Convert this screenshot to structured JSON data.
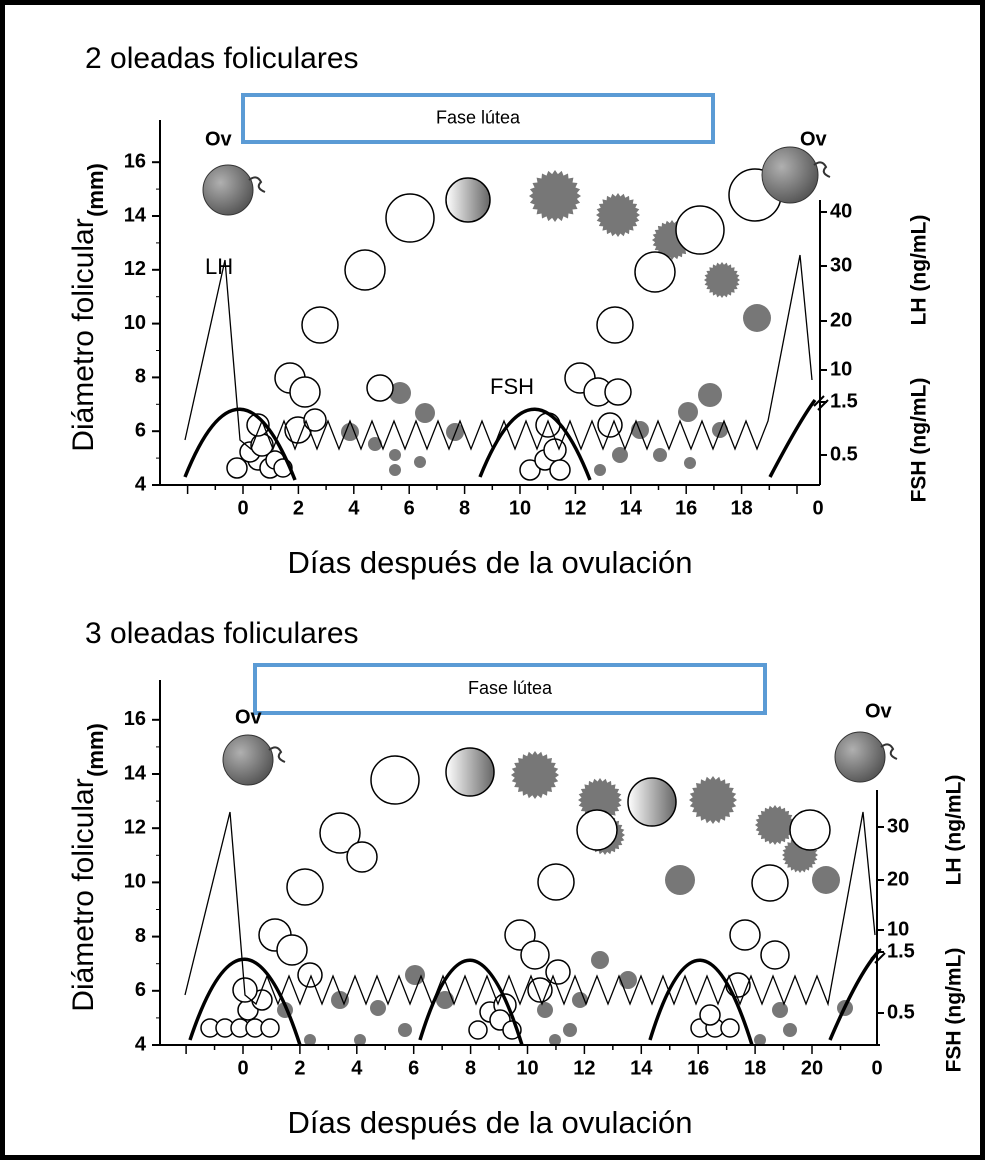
{
  "panels": [
    {
      "title": "2 oleadas foliculares",
      "phase_label": "Fase lútea",
      "y_axis_label": "Diámetro folicular",
      "y_axis_unit": "(mm)",
      "y_ticks": [
        "4",
        "6",
        "8",
        "10",
        "12",
        "14",
        "16"
      ],
      "x_ticks": [
        "0",
        "2",
        "4",
        "6",
        "8",
        "10",
        "12",
        "14",
        "16",
        "18",
        "0"
      ],
      "right_ticks": [
        "40",
        "30",
        "20",
        "10",
        "1.5",
        "0.5"
      ],
      "right_axis_labels": [
        "LH (ng/mL)",
        "FSH (ng/mL)"
      ],
      "x_axis_label": "Días después de la ovulación",
      "ovulation_labels": [
        "Ov",
        "Ov"
      ],
      "hormone_labels": [
        "LH",
        "FSH"
      ]
    },
    {
      "title": "3 oleadas foliculares",
      "phase_label": "Fase lútea",
      "y_axis_label": "Diámetro folicular",
      "y_axis_unit": "(mm)",
      "y_ticks": [
        "4",
        "6",
        "8",
        "10",
        "12",
        "14",
        "16"
      ],
      "x_ticks": [
        "0",
        "2",
        "4",
        "6",
        "8",
        "10",
        "12",
        "14",
        "16",
        "18",
        "20",
        "0"
      ],
      "right_ticks": [
        "30",
        "20",
        "10",
        "1.5",
        "0.5"
      ],
      "right_axis_labels": [
        "LH (ng/mL)",
        "FSH (ng/mL)"
      ],
      "x_axis_label": "Días después de la ovulación",
      "ovulation_labels": [
        "Ov",
        "Ov"
      ]
    }
  ]
}
